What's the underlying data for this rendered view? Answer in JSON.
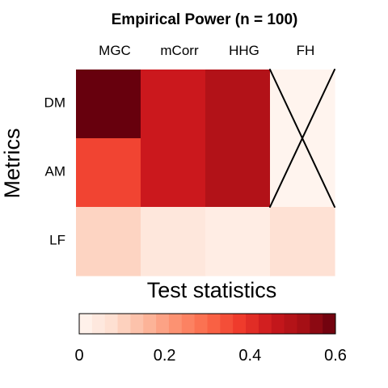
{
  "chart_data": {
    "type": "heatmap",
    "title": "Empirical Power (n = 100)",
    "xlabel": "Test statistics",
    "ylabel": "Metrics",
    "columns": [
      "MGC",
      "mCorr",
      "HHG",
      "FH"
    ],
    "rows": [
      "DM",
      "AM",
      "LF"
    ],
    "values": [
      [
        0.6,
        0.45,
        0.5,
        null
      ],
      [
        0.36,
        0.45,
        0.5,
        null
      ],
      [
        0.1,
        0.05,
        0.03,
        0.07
      ]
    ],
    "crossed_out": [
      {
        "column": "FH",
        "rows": [
          "DM",
          "AM"
        ]
      }
    ],
    "colorbar": {
      "range": [
        0,
        0.6
      ],
      "ticks": [
        0,
        0.2,
        0.4,
        0.6
      ],
      "tick_labels": [
        "0",
        "0.2",
        "0.4",
        "0.6"
      ],
      "steps": 20
    },
    "colormap": [
      "#fff5f0",
      "#fee0d2",
      "#fcbba1",
      "#fc9272",
      "#fb6a4a",
      "#ef3b2c",
      "#cb181d",
      "#a50f15",
      "#67000d"
    ],
    "grid": false
  }
}
